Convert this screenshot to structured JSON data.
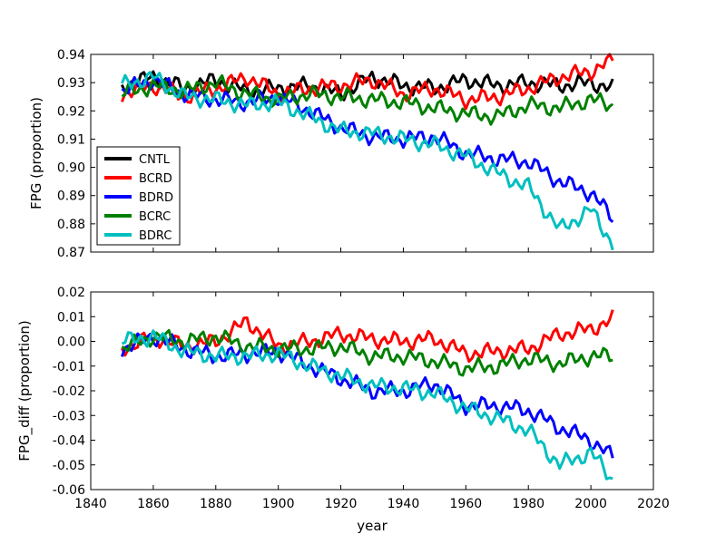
{
  "chart_data": [
    {
      "type": "line",
      "panel": "top",
      "title": "",
      "xlabel": "",
      "ylabel": "FPG (proportion)",
      "xlim": [
        1840,
        2020
      ],
      "ylim": [
        0.87,
        0.94
      ],
      "yticks": [
        "0.87",
        "0.88",
        "0.89",
        "0.90",
        "0.91",
        "0.92",
        "0.93",
        "0.94"
      ],
      "show_xtick_labels": false,
      "legend_position": "lower-left",
      "series": [
        {
          "name": "CNTL",
          "color": "#000000",
          "x": [
            1850,
            1860,
            1870,
            1880,
            1890,
            1900,
            1910,
            1920,
            1930,
            1940,
            1950,
            1960,
            1970,
            1980,
            1990,
            2000,
            2007
          ],
          "y": [
            0.929,
            0.932,
            0.928,
            0.931,
            0.927,
            0.928,
            0.929,
            0.926,
            0.932,
            0.929,
            0.928,
            0.931,
            0.929,
            0.93,
            0.929,
            0.93,
            0.928
          ]
        },
        {
          "name": "BCRD",
          "color": "#ff0000",
          "x": [
            1850,
            1860,
            1870,
            1880,
            1890,
            1900,
            1910,
            1920,
            1930,
            1940,
            1950,
            1960,
            1970,
            1980,
            1990,
            2000,
            2007
          ],
          "y": [
            0.926,
            0.929,
            0.925,
            0.928,
            0.932,
            0.926,
            0.928,
            0.929,
            0.931,
            0.926,
            0.928,
            0.924,
            0.925,
            0.928,
            0.932,
            0.934,
            0.938
          ]
        },
        {
          "name": "BDRD",
          "color": "#0000ff",
          "x": [
            1850,
            1860,
            1870,
            1880,
            1890,
            1900,
            1910,
            1920,
            1930,
            1940,
            1950,
            1960,
            1970,
            1980,
            1990,
            2000,
            2007
          ],
          "y": [
            0.927,
            0.931,
            0.926,
            0.924,
            0.923,
            0.925,
            0.92,
            0.914,
            0.911,
            0.91,
            0.911,
            0.905,
            0.903,
            0.902,
            0.895,
            0.891,
            0.882
          ]
        },
        {
          "name": "BCRC",
          "color": "#008000",
          "x": [
            1850,
            1860,
            1870,
            1880,
            1890,
            1900,
            1910,
            1920,
            1930,
            1940,
            1950,
            1960,
            1970,
            1980,
            1990,
            2000,
            2007
          ],
          "y": [
            0.926,
            0.929,
            0.927,
            0.93,
            0.926,
            0.924,
            0.926,
            0.925,
            0.924,
            0.923,
            0.921,
            0.919,
            0.918,
            0.922,
            0.921,
            0.924,
            0.922
          ]
        },
        {
          "name": "BDRC",
          "color": "#00bfbf",
          "x": [
            1850,
            1860,
            1870,
            1880,
            1890,
            1900,
            1910,
            1920,
            1930,
            1940,
            1950,
            1960,
            1970,
            1980,
            1990,
            2000,
            2007
          ],
          "y": [
            0.929,
            0.932,
            0.925,
            0.924,
            0.922,
            0.923,
            0.918,
            0.913,
            0.912,
            0.91,
            0.908,
            0.904,
            0.898,
            0.893,
            0.878,
            0.885,
            0.873
          ]
        }
      ]
    },
    {
      "type": "line",
      "panel": "bottom",
      "title": "",
      "xlabel": "year",
      "ylabel": "FPG_diff (proportion)",
      "xlim": [
        1840,
        2020
      ],
      "ylim": [
        -0.06,
        0.02
      ],
      "xticks": [
        "1840",
        "1860",
        "1880",
        "1900",
        "1920",
        "1940",
        "1960",
        "1980",
        "2000",
        "2020"
      ],
      "yticks": [
        "-0.06",
        "-0.05",
        "-0.04",
        "-0.03",
        "-0.02",
        "-0.01",
        "0.00",
        "0.01",
        "0.02"
      ],
      "show_xtick_labels": true,
      "series": [
        {
          "name": "BCRD",
          "color": "#ff0000",
          "x": [
            1850,
            1860,
            1870,
            1880,
            1890,
            1900,
            1910,
            1920,
            1930,
            1940,
            1950,
            1960,
            1970,
            1980,
            1990,
            2000,
            2007
          ],
          "y": [
            -0.003,
            0.002,
            -0.002,
            0.0,
            0.008,
            -0.002,
            0.0,
            0.003,
            0.001,
            0.0,
            0.001,
            -0.005,
            -0.004,
            -0.003,
            0.003,
            0.005,
            0.009
          ]
        },
        {
          "name": "BDRD",
          "color": "#0000ff",
          "x": [
            1850,
            1860,
            1870,
            1880,
            1890,
            1900,
            1910,
            1920,
            1930,
            1940,
            1950,
            1960,
            1970,
            1980,
            1990,
            2000,
            2007
          ],
          "y": [
            -0.003,
            0.002,
            -0.003,
            -0.006,
            -0.005,
            -0.004,
            -0.01,
            -0.015,
            -0.02,
            -0.02,
            -0.017,
            -0.026,
            -0.026,
            -0.028,
            -0.035,
            -0.04,
            -0.047
          ]
        },
        {
          "name": "BCRC",
          "color": "#008000",
          "x": [
            1850,
            1860,
            1870,
            1880,
            1890,
            1900,
            1910,
            1920,
            1930,
            1940,
            1950,
            1960,
            1970,
            1980,
            1990,
            2000,
            2007
          ],
          "y": [
            -0.003,
            0.002,
            0.0,
            0.002,
            -0.002,
            -0.003,
            -0.003,
            -0.002,
            -0.006,
            -0.006,
            -0.008,
            -0.011,
            -0.01,
            -0.007,
            -0.009,
            -0.006,
            -0.006
          ]
        },
        {
          "name": "BDRC",
          "color": "#00bfbf",
          "x": [
            1850,
            1860,
            1870,
            1880,
            1890,
            1900,
            1910,
            1920,
            1930,
            1940,
            1950,
            1960,
            1970,
            1980,
            1990,
            2000,
            2007
          ],
          "y": [
            0.0,
            0.002,
            -0.004,
            -0.006,
            -0.006,
            -0.005,
            -0.01,
            -0.014,
            -0.018,
            -0.019,
            -0.021,
            -0.027,
            -0.031,
            -0.036,
            -0.05,
            -0.045,
            -0.056
          ]
        }
      ]
    }
  ]
}
